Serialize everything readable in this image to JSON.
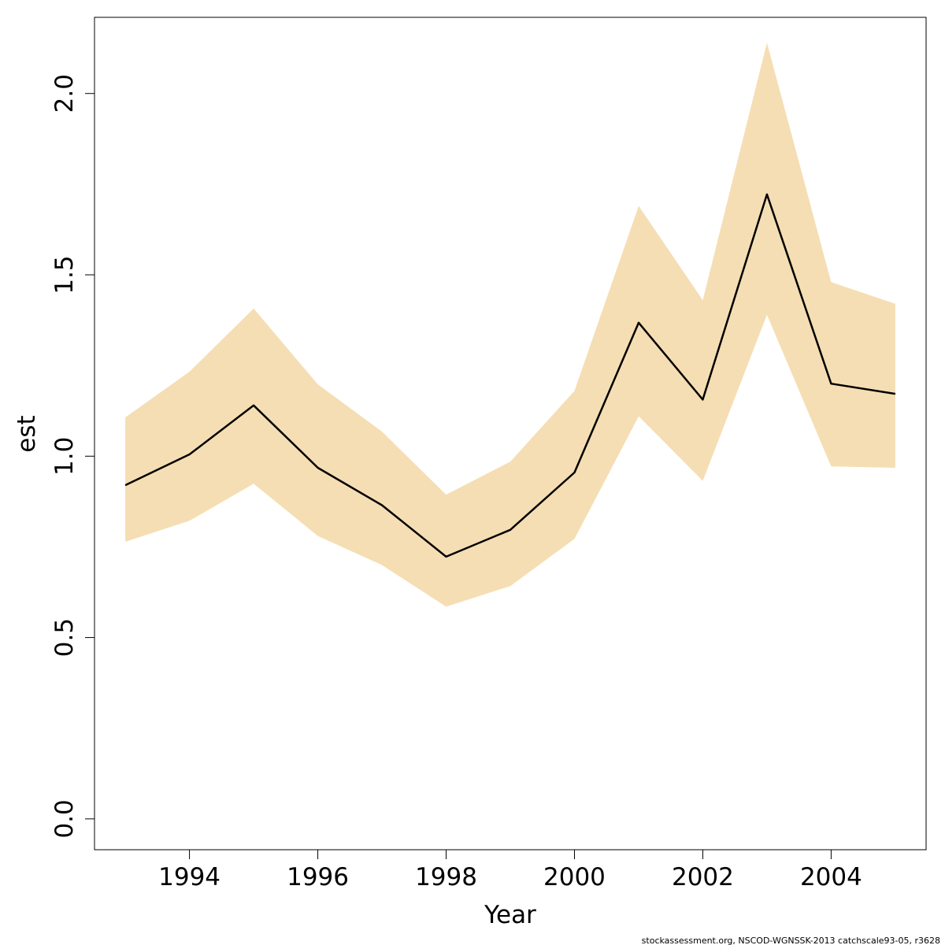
{
  "chart_data": {
    "type": "line",
    "title": "",
    "xlabel": "Year",
    "ylabel": "est",
    "xlim": [
      1992.52,
      2005.48
    ],
    "ylim": [
      -0.085,
      2.21
    ],
    "x_ticks": [
      1994,
      1996,
      1998,
      2000,
      2002,
      2004
    ],
    "y_ticks": [
      0.0,
      0.5,
      1.0,
      1.5,
      2.0
    ],
    "x_tick_labels": [
      "1994",
      "1996",
      "1998",
      "2000",
      "2002",
      "2004"
    ],
    "y_tick_labels": [
      "0.0",
      "0.5",
      "1.0",
      "1.5",
      "2.0"
    ],
    "grid": false,
    "legend": "none",
    "series": [
      {
        "x": [
          1993,
          1994,
          1995,
          1996,
          1997,
          1998,
          1999,
          2000,
          2001,
          2002,
          2003,
          2004,
          2005
        ],
        "y": [
          0.92,
          1.005,
          1.14,
          0.968,
          0.865,
          0.723,
          0.797,
          0.955,
          1.368,
          1.156,
          1.722,
          1.2,
          1.172
        ],
        "lower": [
          0.764,
          0.822,
          0.924,
          0.78,
          0.7,
          0.585,
          0.642,
          0.772,
          1.11,
          0.932,
          1.39,
          0.972,
          0.968
        ],
        "upper": [
          1.107,
          1.233,
          1.407,
          1.198,
          1.068,
          0.894,
          0.985,
          1.18,
          1.69,
          1.43,
          2.14,
          1.48,
          1.42
        ],
        "line_color": "#000000",
        "band_color": "#F5DEB3"
      }
    ],
    "footer_note": "stockassessment.org, NSCOD-WGNSSK-2013  catchscale93-05, r3628"
  }
}
